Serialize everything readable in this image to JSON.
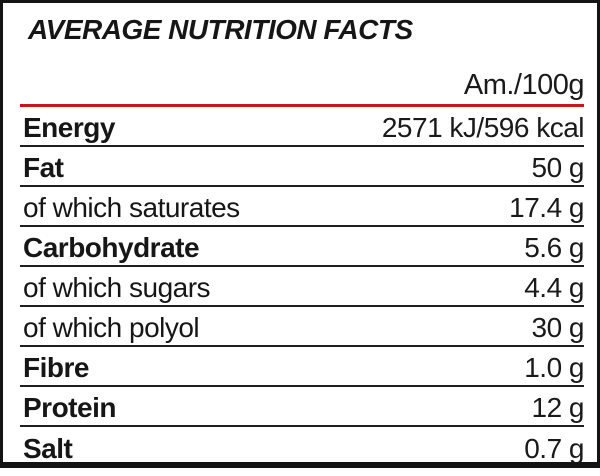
{
  "label": {
    "title": "AVERAGE NUTRITION FACTS",
    "column_header": "Am./100g",
    "rows": [
      {
        "name": "Energy",
        "value": "2571 kJ/596 kcal",
        "bold": true
      },
      {
        "name": "Fat",
        "value": "50 g",
        "bold": true
      },
      {
        "name": "of which saturates",
        "value": "17.4 g",
        "bold": false
      },
      {
        "name": "Carbohydrate",
        "value": "5.6 g",
        "bold": true
      },
      {
        "name": "of which sugars",
        "value": "4.4 g",
        "bold": false
      },
      {
        "name": "of which polyol",
        "value": "30 g",
        "bold": false
      },
      {
        "name": "Fibre",
        "value": "1.0 g",
        "bold": true
      },
      {
        "name": "Protein",
        "value": "12 g",
        "bold": true
      },
      {
        "name": "Salt",
        "value": "0.7 g",
        "bold": true
      }
    ],
    "colors": {
      "accent_red": "#c9151b",
      "frame_black": "#141414",
      "divider": "#1f1f1f"
    }
  }
}
